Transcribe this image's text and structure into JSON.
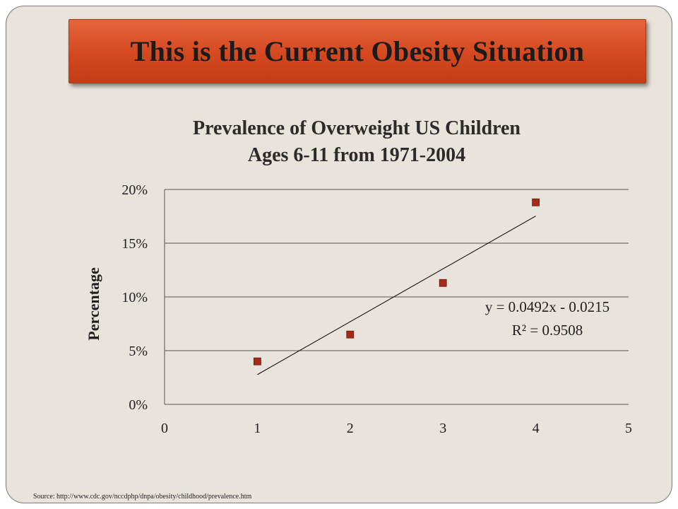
{
  "slide": {
    "title": "This is the Current Obesity Situation",
    "source": "Source: http://www.cdc.gov/nccdphp/dnpa/obesity/childhood/prevalence.htm"
  },
  "colors": {
    "banner": "#d4481f",
    "background": "#e8e4dc",
    "marker": "#a52a17",
    "trendline": "#000000",
    "gridline": "#555555"
  },
  "chart_data": {
    "type": "scatter",
    "title_lines": [
      "Prevalence of Overweight US Children",
      "Ages 6-11 from 1971-2004"
    ],
    "ylabel": "Percentage",
    "xlabel": "",
    "xlim": [
      0,
      5
    ],
    "ylim": [
      0,
      0.2
    ],
    "x_ticks": [
      0,
      1,
      2,
      3,
      4,
      5
    ],
    "x_tick_labels": [
      "0",
      "1",
      "2",
      "3",
      "4",
      "5"
    ],
    "y_ticks": [
      0,
      0.05,
      0.1,
      0.15,
      0.2
    ],
    "y_tick_labels": [
      "0%",
      "5%",
      "10%",
      "15%",
      "20%"
    ],
    "grid": "horizontal",
    "points": [
      {
        "x": 1,
        "y": 0.04
      },
      {
        "x": 2,
        "y": 0.065
      },
      {
        "x": 3,
        "y": 0.113
      },
      {
        "x": 4,
        "y": 0.188
      }
    ],
    "trendline": {
      "slope": 0.0492,
      "intercept": -0.0215,
      "x_range": [
        1,
        4
      ],
      "equation_label": "y = 0.0492x - 0.0215",
      "r2_label": "R² = 0.9508"
    }
  }
}
